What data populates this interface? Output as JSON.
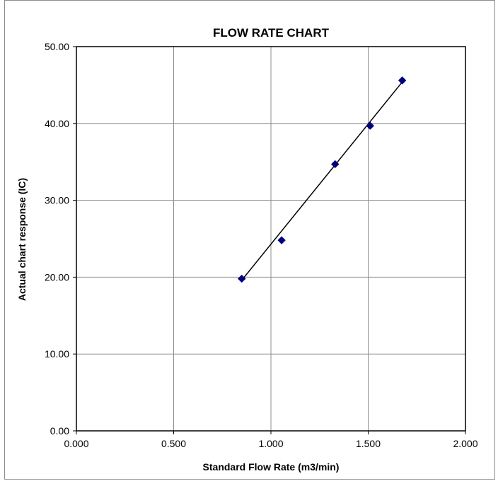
{
  "chart_data": {
    "type": "scatter",
    "title": "FLOW RATE CHART",
    "xlabel": "Standard Flow Rate (m3/min)",
    "ylabel": "Actual chart response (IC)",
    "xlim": [
      0,
      2
    ],
    "ylim": [
      0,
      50
    ],
    "xticks": [
      0,
      0.5,
      1.0,
      1.5,
      2.0
    ],
    "xtick_labels": [
      "0.000",
      "0.500",
      "1.000",
      "1.500",
      "2.000"
    ],
    "yticks": [
      0,
      10,
      20,
      30,
      40,
      50
    ],
    "ytick_labels": [
      "0.00",
      "10.00",
      "20.00",
      "30.00",
      "40.00",
      "50.00"
    ],
    "grid": true,
    "series": [
      {
        "points": [
          {
            "x": 0.85,
            "y": 19.8
          },
          {
            "x": 1.055,
            "y": 24.8
          },
          {
            "x": 1.33,
            "y": 34.7
          },
          {
            "x": 1.51,
            "y": 39.7
          },
          {
            "x": 1.675,
            "y": 45.6
          }
        ],
        "marker": "diamond",
        "color": "#00007f"
      }
    ],
    "trendline": {
      "type": "linear",
      "color": "#000000",
      "from": {
        "x": 0.85,
        "y": 19.6
      },
      "to": {
        "x": 1.675,
        "y": 45.4
      }
    },
    "background_color": "#ffffff",
    "grid_color": "#8c8c8c"
  }
}
